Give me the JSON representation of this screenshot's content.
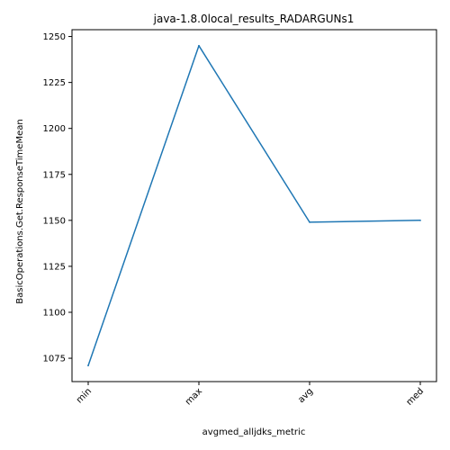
{
  "chart_data": {
    "type": "line",
    "title": "java-1.8.0local_results_RADARGUNs1",
    "xlabel": "avgmed_alljdks_metric",
    "ylabel": "BasicOperations.Get.ResponseTimeMean",
    "categories": [
      "min",
      "max",
      "avg",
      "med"
    ],
    "series": [
      {
        "values": [
          1071,
          1245,
          1149,
          1150
        ],
        "color": "#1f77b4"
      }
    ],
    "yticks": [
      1075,
      1100,
      1125,
      1150,
      1175,
      1200,
      1225,
      1250
    ],
    "ylim": [
      1062.3,
      1253.7
    ],
    "grid": false,
    "x_tick_rotation": 45
  }
}
